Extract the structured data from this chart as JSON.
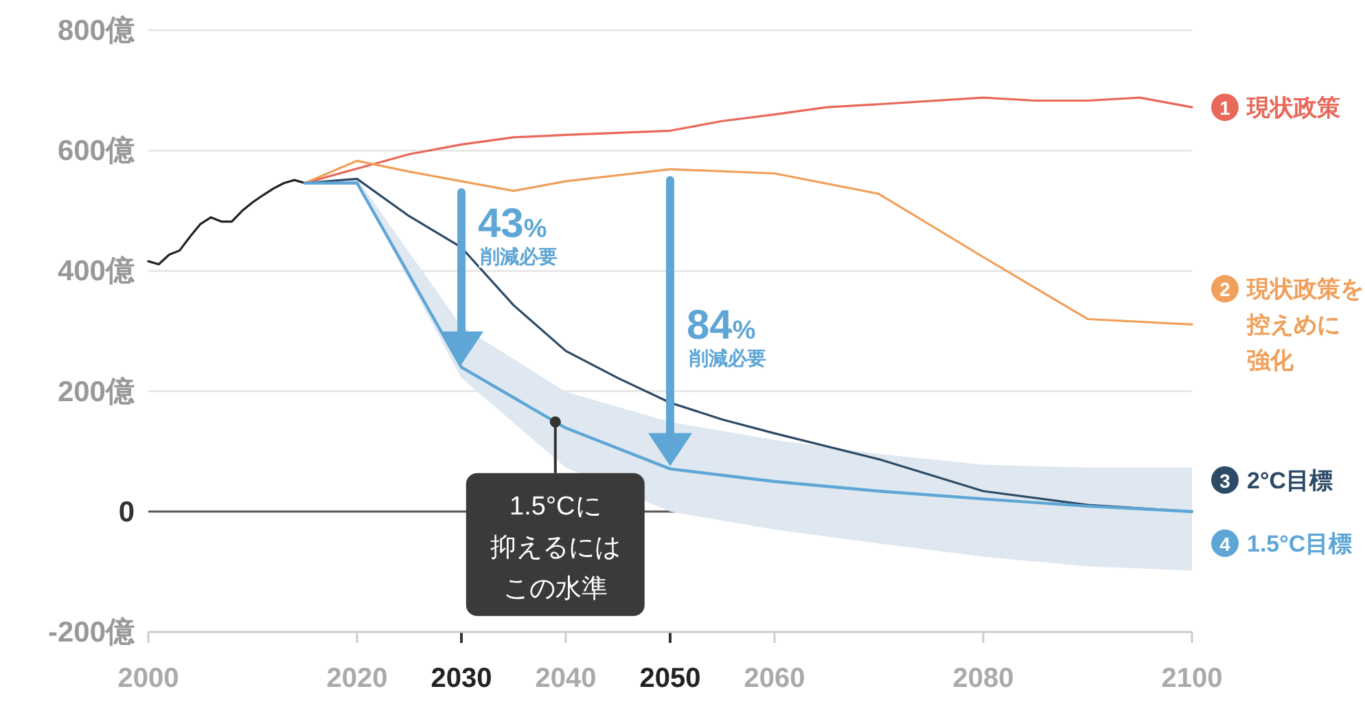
{
  "chart_data": {
    "type": "line",
    "x": [
      2000,
      2001,
      2002,
      2003,
      2004,
      2005,
      2006,
      2007,
      2008,
      2009,
      2010,
      2011,
      2012,
      2013,
      2014,
      2015
    ],
    "xlim": [
      2000,
      2100
    ],
    "xticks": [
      2000,
      2020,
      2030,
      2040,
      2050,
      2060,
      2080,
      2100
    ],
    "ylim": [
      -200,
      800
    ],
    "yticks": [
      {
        "value": -200,
        "label": "-200億"
      },
      {
        "value": 0,
        "label": "0"
      },
      {
        "value": 200,
        "label": "200億"
      },
      {
        "value": 400,
        "label": "400億"
      },
      {
        "value": 600,
        "label": "600億"
      },
      {
        "value": 800,
        "label": "800億"
      }
    ],
    "grid": "y",
    "legend": "right",
    "marker": "none",
    "line_style": "solid",
    "series": [
      {
        "color": "#222222",
        "values": [
          416,
          411,
          427,
          434,
          457,
          478,
          489,
          482,
          482,
          500,
          514,
          526,
          537,
          546,
          551,
          546
        ]
      },
      {
        "name": "1 現状政策",
        "color": "#e8685a",
        "x": [
          2015,
          2020,
          2025,
          2030,
          2035,
          2040,
          2050,
          2055,
          2060,
          2065,
          2070,
          2080,
          2085,
          2090,
          2095,
          2100
        ],
        "values": [
          546,
          570,
          594,
          610,
          622,
          626,
          633,
          649,
          660,
          672,
          677,
          688,
          683,
          683,
          688,
          672
        ]
      },
      {
        "name": "2 現状政策を控えめに強化",
        "color": "#f0a05a",
        "x": [
          2015,
          2020,
          2025,
          2030,
          2035,
          2040,
          2050,
          2060,
          2070,
          2080,
          2090,
          2100
        ],
        "values": [
          546,
          583,
          565,
          549,
          533,
          549,
          569,
          562,
          528,
          423,
          320,
          311
        ]
      },
      {
        "name": "3 2°C目標",
        "color": "#2d4a66",
        "x": [
          2015,
          2020,
          2025,
          2030,
          2035,
          2040,
          2045,
          2050,
          2055,
          2060,
          2070,
          2080,
          2090,
          2100
        ],
        "values": [
          546,
          553,
          491,
          439,
          343,
          267,
          222,
          181,
          153,
          130,
          87,
          34,
          11,
          0
        ]
      },
      {
        "name": "4 1.5°C目標",
        "color": "#5ea6d6",
        "x": [
          2015,
          2020,
          2030,
          2040,
          2050,
          2060,
          2070,
          2080,
          2090,
          2100
        ],
        "values": [
          546,
          546,
          240,
          139,
          71,
          50,
          34,
          21,
          9,
          0
        ],
        "lower": [
          546,
          546,
          222,
          73,
          0,
          -30,
          -53,
          -75,
          -91,
          -98
        ],
        "upper": [
          546,
          553,
          308,
          199,
          149,
          119,
          96,
          78,
          73,
          73
        ]
      }
    ],
    "annotations": [
      {
        "text": "43% 削減必要",
        "x": 2030,
        "y": 240
      },
      {
        "text": "84% 削減必要",
        "x": 2050,
        "y": 71
      },
      {
        "text": "1.5°Cに抑えるにはこの水準",
        "x": 2039,
        "y": 149
      }
    ]
  }
}
